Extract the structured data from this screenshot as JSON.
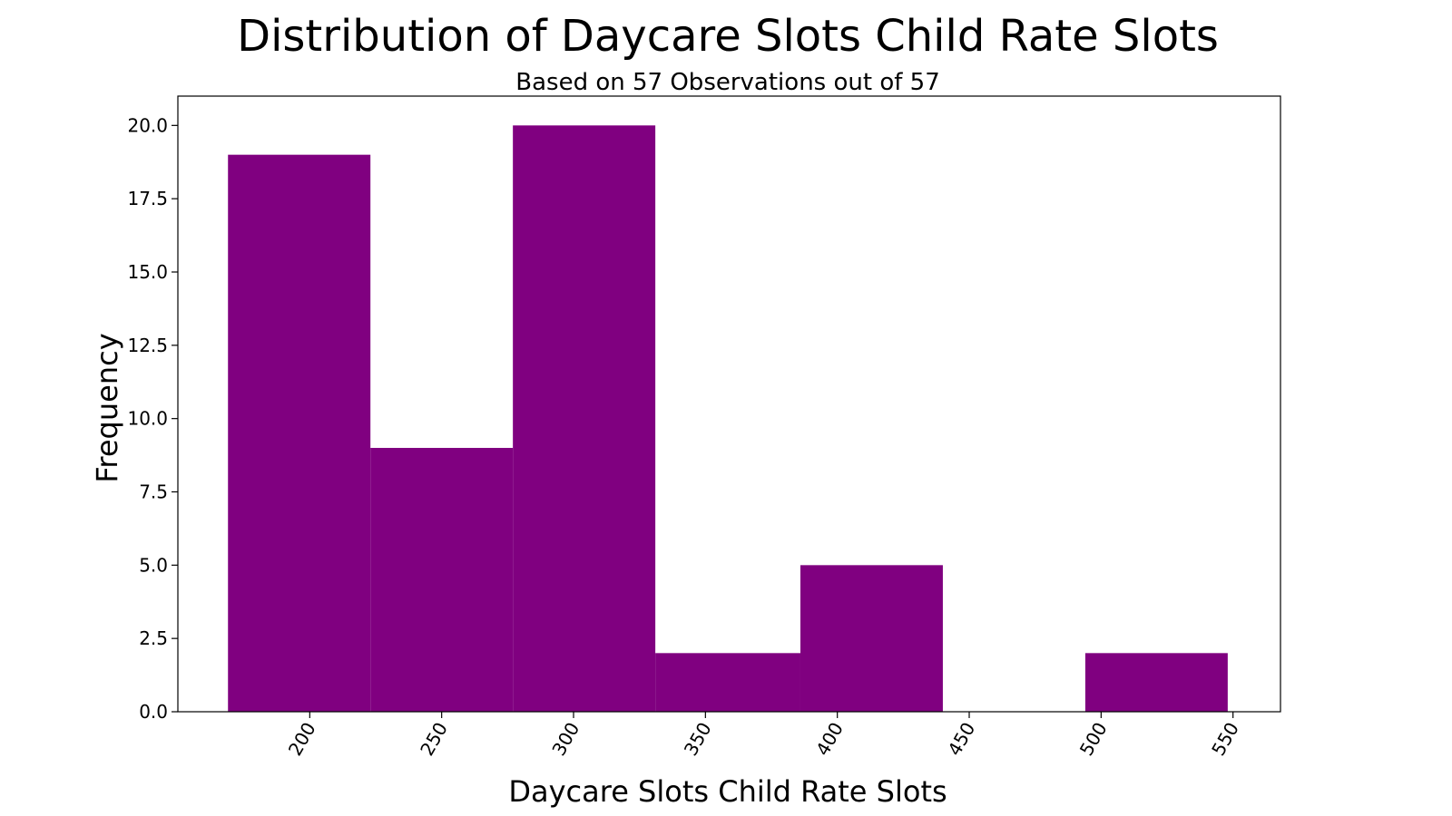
{
  "chart_data": {
    "type": "bar",
    "title": "Distribution of Daycare Slots Child Rate Slots",
    "subtitle": "Based on 57 Observations out of 57",
    "xlabel": "Daycare Slots Child Rate Slots",
    "ylabel": "Frequency",
    "bins": [
      {
        "start": 169,
        "end": 223,
        "count": 19
      },
      {
        "start": 223,
        "end": 277,
        "count": 9
      },
      {
        "start": 277,
        "end": 331,
        "count": 20
      },
      {
        "start": 331,
        "end": 386,
        "count": 2
      },
      {
        "start": 386,
        "end": 440,
        "count": 5
      },
      {
        "start": 440,
        "end": 494,
        "count": 0
      },
      {
        "start": 494,
        "end": 548,
        "count": 2
      }
    ],
    "xlim": [
      150,
      568
    ],
    "ylim": [
      0,
      21
    ],
    "x_ticks": [
      {
        "value": 200,
        "label": "200"
      },
      {
        "value": 250,
        "label": "250"
      },
      {
        "value": 300,
        "label": "300"
      },
      {
        "value": 350,
        "label": "350"
      },
      {
        "value": 400,
        "label": "400"
      },
      {
        "value": 450,
        "label": "450"
      },
      {
        "value": 500,
        "label": "500"
      },
      {
        "value": 550,
        "label": "550"
      }
    ],
    "y_ticks": [
      {
        "value": 0,
        "label": "0.0"
      },
      {
        "value": 2.5,
        "label": "2.5"
      },
      {
        "value": 5,
        "label": "5.0"
      },
      {
        "value": 7.5,
        "label": "7.5"
      },
      {
        "value": 10,
        "label": "10.0"
      },
      {
        "value": 12.5,
        "label": "12.5"
      },
      {
        "value": 15,
        "label": "15.0"
      },
      {
        "value": 17.5,
        "label": "17.5"
      },
      {
        "value": 20,
        "label": "20.0"
      }
    ],
    "bar_color": "#800080",
    "grid": false,
    "legend": "none"
  }
}
